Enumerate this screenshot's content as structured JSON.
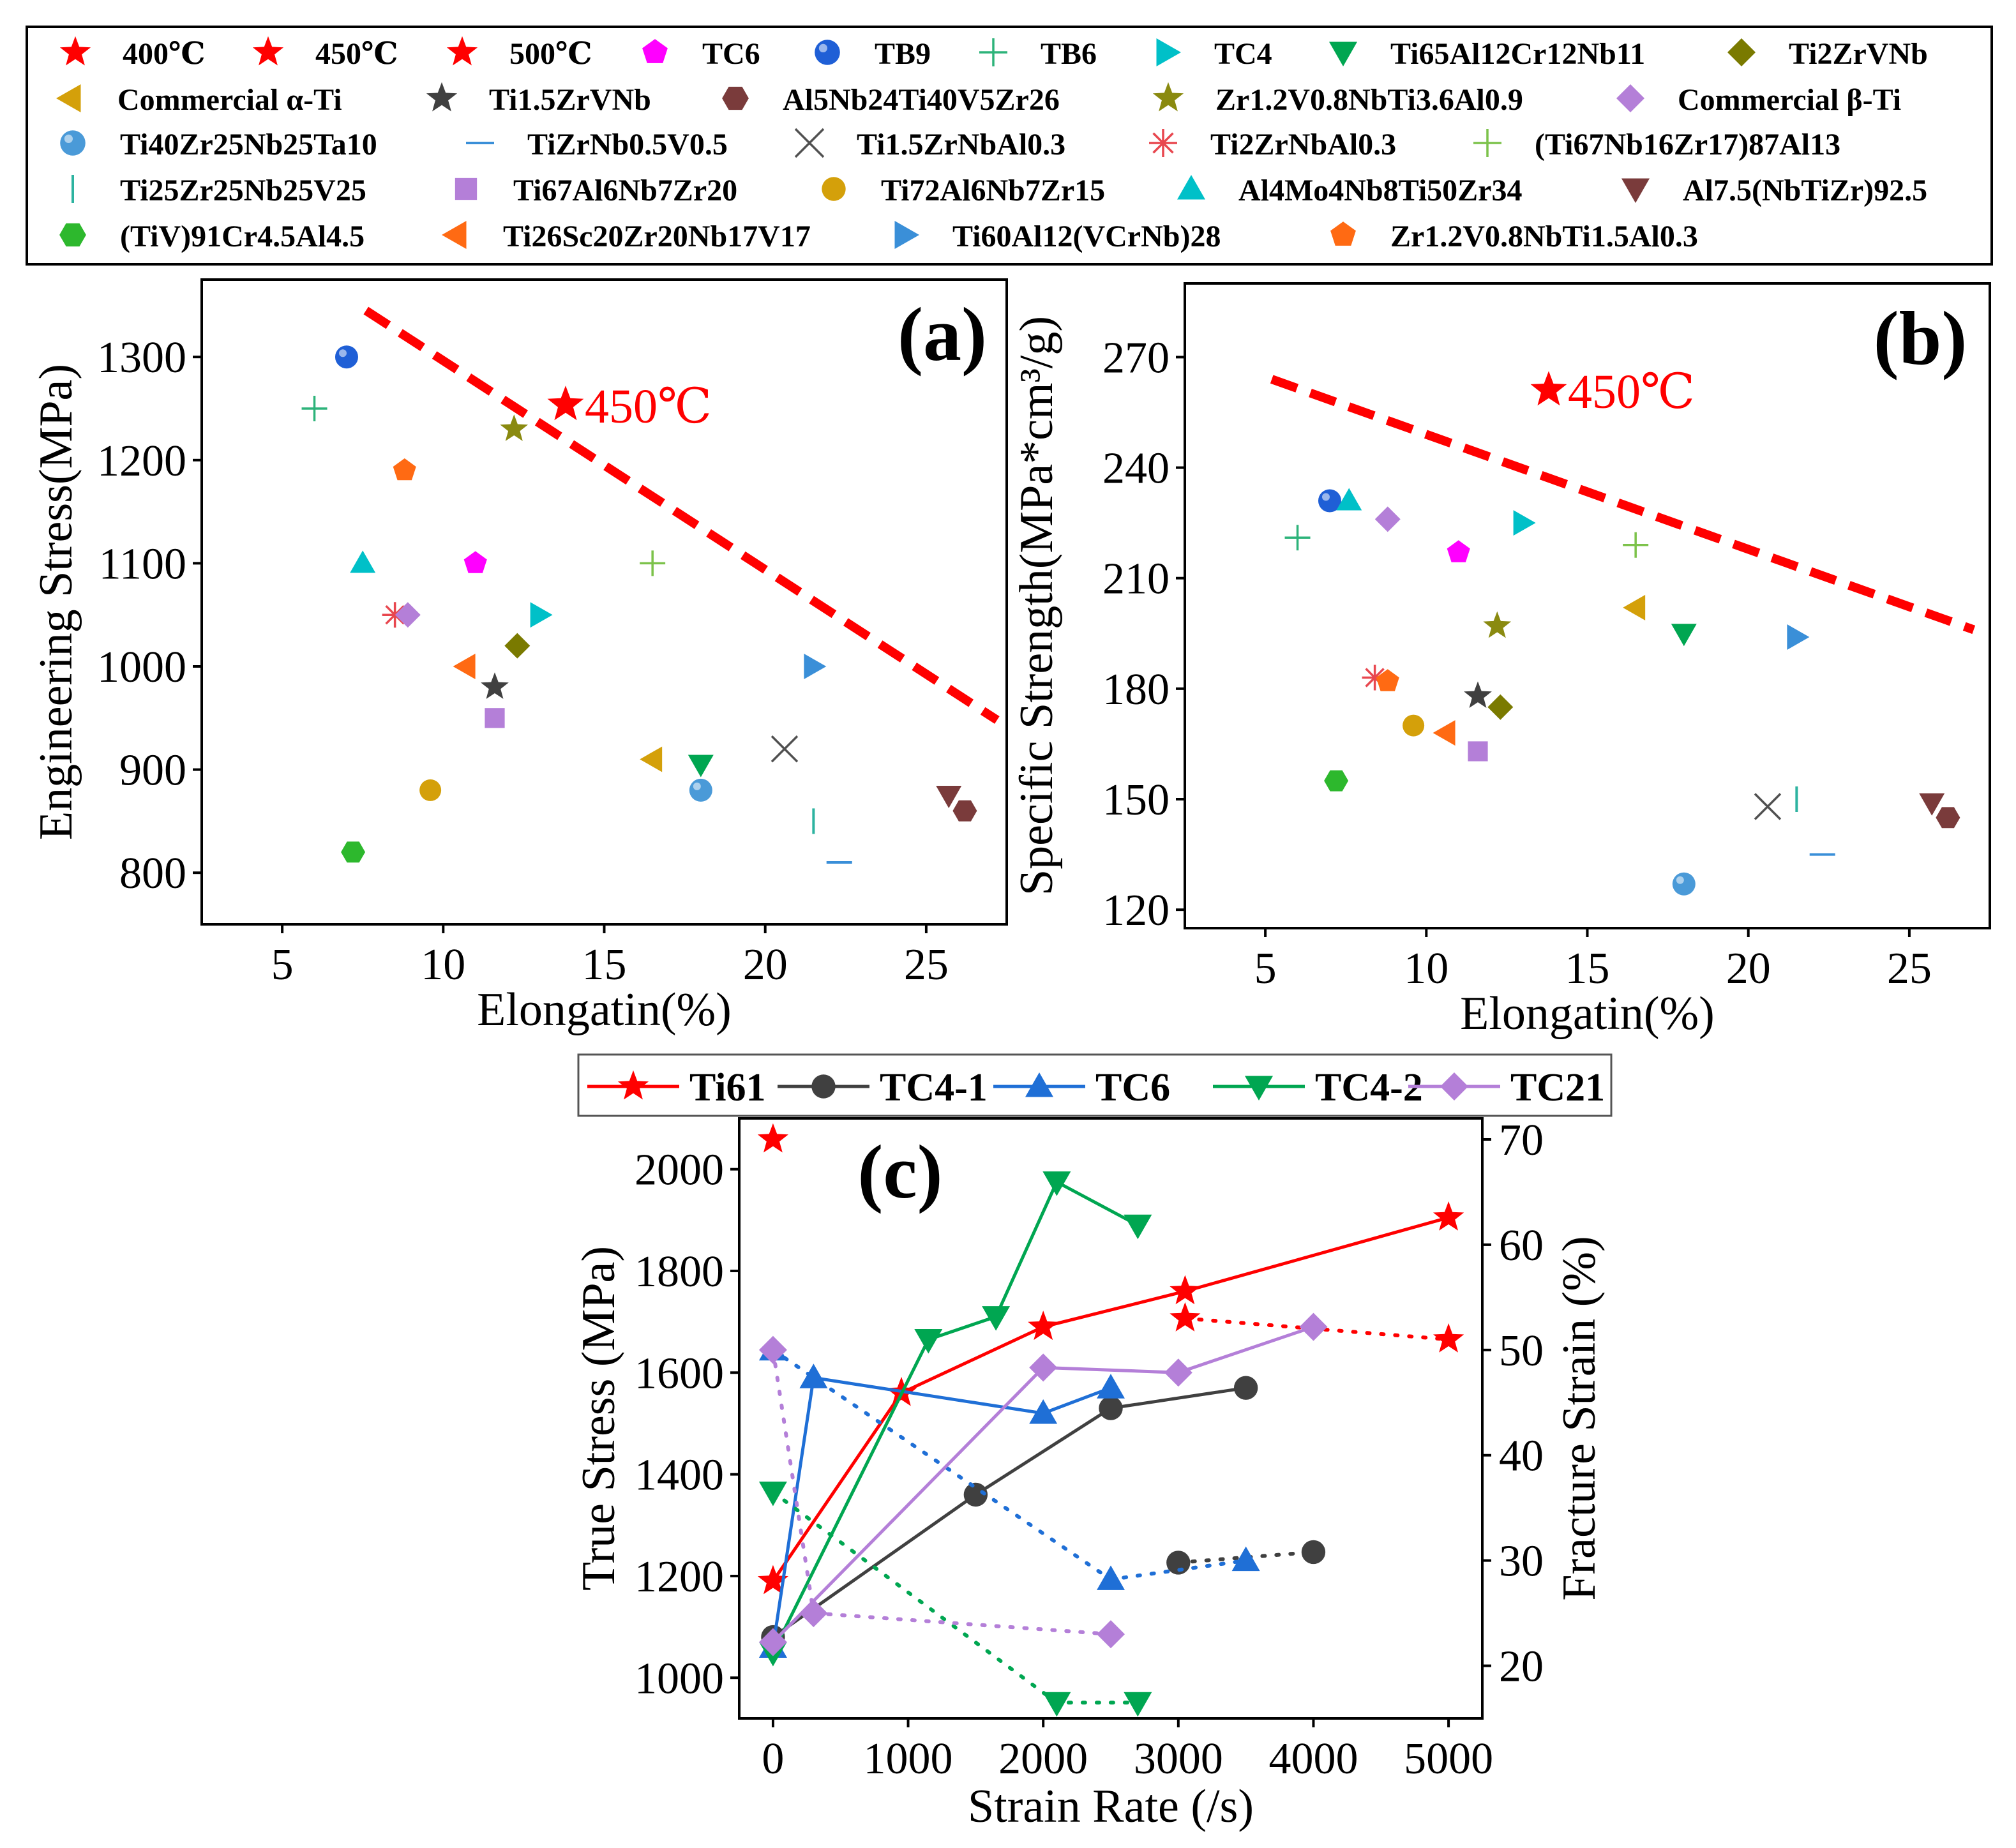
{
  "figure": {
    "legend_top": [
      {
        "label": "400℃",
        "marker": "star",
        "color": "#ff0000"
      },
      {
        "label": "450℃",
        "marker": "star",
        "color": "#ff0000"
      },
      {
        "label": "500℃",
        "marker": "star",
        "color": "#ff0000"
      },
      {
        "label": "TC6",
        "marker": "pentagon",
        "color": "#ff00ff"
      },
      {
        "label": "TB9",
        "marker": "sphere",
        "color": "#1f5fd6"
      },
      {
        "label": "TB6",
        "marker": "plus",
        "color": "#2db37a"
      },
      {
        "label": "TC4",
        "marker": "triangle-right",
        "color": "#00c0c8"
      },
      {
        "label": "Ti65Al12Cr12Nb11",
        "marker": "triangle-down",
        "color": "#00a651"
      },
      {
        "label": "Ti2ZrVNb",
        "marker": "diamond",
        "color": "#7a7a00"
      },
      {
        "label": "Commercial α-Ti",
        "marker": "triangle-left",
        "color": "#d4a00a"
      },
      {
        "label": "Ti1.5ZrVNb",
        "marker": "star",
        "color": "#404040"
      },
      {
        "label": "Al5Nb24Ti40V5Zr26",
        "marker": "hexagon",
        "color": "#7a3b3b"
      },
      {
        "label": "Zr1.2V0.8NbTi3.6Al0.9",
        "marker": "star",
        "color": "#8a8a10"
      },
      {
        "label": "Commercial β-Ti",
        "marker": "diamond",
        "color": "#b47fd8"
      },
      {
        "label": "Ti40Zr25Nb25Ta10",
        "marker": "sphere",
        "color": "#4a9ad8"
      },
      {
        "label": "TiZrNb0.5V0.5",
        "marker": "minus",
        "color": "#3a8fd8"
      },
      {
        "label": "Ti1.5ZrNbAl0.3",
        "marker": "cross",
        "color": "#505050"
      },
      {
        "label": "Ti2ZrNbAl0.3",
        "marker": "asterisk",
        "color": "#e8474f"
      },
      {
        "label": "(Ti67Nb16Zr17)87Al13",
        "marker": "plus",
        "color": "#7cc24a"
      },
      {
        "label": "Ti25Zr25Nb25V25",
        "marker": "vbar",
        "color": "#2db3a0"
      },
      {
        "label": "Ti67Al6Nb7Zr20",
        "marker": "square",
        "color": "#b47fd8"
      },
      {
        "label": "Ti72Al6Nb7Zr15",
        "marker": "circle",
        "color": "#d4a00a"
      },
      {
        "label": "Al4Mo4Nb8Ti50Zr34",
        "marker": "triangle-up",
        "color": "#00c0c8"
      },
      {
        "label": "Al7.5(NbTiZr)92.5",
        "marker": "triangle-down",
        "color": "#7a3b3b"
      },
      {
        "label": "(TiV)91Cr4.5Al4.5",
        "marker": "hexagon",
        "color": "#2db82d"
      },
      {
        "label": "Ti26Sc20Zr20Nb17V17",
        "marker": "triangle-left",
        "color": "#ff6a13"
      },
      {
        "label": "Ti60Al12(VCrNb)28",
        "marker": "triangle-right",
        "color": "#3a8fd8"
      },
      {
        "label": "Zr1.2V0.8NbTi1.5Al0.3",
        "marker": "pentagon",
        "color": "#ff6a13"
      }
    ]
  },
  "chart_data": [
    {
      "type": "scatter",
      "panel_label": "(a)",
      "xlabel": "Elongatin(%)",
      "ylabel": "Engineering Stress(MPa)",
      "xlim": [
        2.5,
        27.5
      ],
      "ylim": [
        750,
        1375
      ],
      "xticks": [
        5,
        10,
        15,
        20,
        25
      ],
      "yticks": [
        800,
        900,
        1000,
        1100,
        1200,
        1300
      ],
      "trend_line": [
        [
          7.6,
          1345
        ],
        [
          27.2,
          948
        ]
      ],
      "annotation": {
        "text": "450℃",
        "x": 13.8,
        "y": 1250
      },
      "points": [
        {
          "label": "TB9",
          "x": 7.0,
          "y": 1300
        },
        {
          "label": "TB6",
          "x": 6.0,
          "y": 1250
        },
        {
          "label": "Zr1.2V0.8NbTi3.6Al0.9",
          "x": 12.2,
          "y": 1230
        },
        {
          "label": "Zr1.2V0.8NbTi1.5Al0.3",
          "x": 8.8,
          "y": 1190
        },
        {
          "label": "Al4Mo4Nb8Ti50Zr34",
          "x": 7.5,
          "y": 1100
        },
        {
          "label": "TC6",
          "x": 11.0,
          "y": 1100
        },
        {
          "label": "(Ti67Nb16Zr17)87Al13",
          "x": 16.5,
          "y": 1100
        },
        {
          "label": "Ti2ZrNbAl0.3",
          "x": 8.5,
          "y": 1050
        },
        {
          "label": "Commercial β-Ti",
          "x": 8.9,
          "y": 1050
        },
        {
          "label": "TC4",
          "x": 13.0,
          "y": 1050
        },
        {
          "label": "Ti2ZrVNb",
          "x": 12.3,
          "y": 1020
        },
        {
          "label": "Ti26Sc20Zr20Nb17V17",
          "x": 10.7,
          "y": 1000
        },
        {
          "label": "Ti60Al12(VCrNb)28",
          "x": 21.5,
          "y": 1000
        },
        {
          "label": "Ti1.5ZrVNb",
          "x": 11.6,
          "y": 980
        },
        {
          "label": "Ti67Al6Nb7Zr20",
          "x": 11.6,
          "y": 950
        },
        {
          "label": "Ti1.5ZrNbAl0.3",
          "x": 20.6,
          "y": 920
        },
        {
          "label": "Commercial α-Ti",
          "x": 16.5,
          "y": 910
        },
        {
          "label": "Ti65Al12Cr12Nb11",
          "x": 18.0,
          "y": 905
        },
        {
          "label": "Ti72Al6Nb7Zr15",
          "x": 9.6,
          "y": 880
        },
        {
          "label": "Ti40Zr25Nb25Ta10",
          "x": 18.0,
          "y": 880
        },
        {
          "label": "Al7.5(NbTiZr)92.5",
          "x": 25.7,
          "y": 875
        },
        {
          "label": "Al5Nb24Ti40V5Zr26",
          "x": 26.2,
          "y": 860
        },
        {
          "label": "Ti25Zr25Nb25V25",
          "x": 21.5,
          "y": 850
        },
        {
          "label": "TiZrNb0.5V0.5",
          "x": 22.3,
          "y": 810
        },
        {
          "label": "(TiV)91Cr4.5Al4.5",
          "x": 7.2,
          "y": 820
        }
      ]
    },
    {
      "type": "scatter",
      "panel_label": "(b)",
      "xlabel": "Elongatin(%)",
      "ylabel": "Specific Strength(MPa*cm³/g)",
      "xlim": [
        2.5,
        27.5
      ],
      "ylim": [
        115,
        290
      ],
      "xticks": [
        5,
        10,
        15,
        20,
        25
      ],
      "yticks": [
        120,
        150,
        180,
        210,
        240,
        270
      ],
      "trend_line": [
        [
          5.2,
          264
        ],
        [
          27.0,
          196
        ]
      ],
      "annotation": {
        "text": "450℃",
        "x": 13.8,
        "y": 260
      },
      "points": [
        {
          "label": "TB9",
          "x": 7.0,
          "y": 231
        },
        {
          "label": "Al4Mo4Nb8Ti50Zr34",
          "x": 7.6,
          "y": 231
        },
        {
          "label": "Commercial β-Ti",
          "x": 8.8,
          "y": 226
        },
        {
          "label": "TC4",
          "x": 13.0,
          "y": 225
        },
        {
          "label": "TB6",
          "x": 6.0,
          "y": 221
        },
        {
          "label": "(Ti67Nb16Zr17)87Al13",
          "x": 16.5,
          "y": 219
        },
        {
          "label": "TC6",
          "x": 11.0,
          "y": 217
        },
        {
          "label": "Commercial α-Ti",
          "x": 16.5,
          "y": 202
        },
        {
          "label": "Zr1.2V0.8NbTi3.6Al0.9",
          "x": 12.2,
          "y": 197
        },
        {
          "label": "Ti65Al12Cr12Nb11",
          "x": 18.0,
          "y": 195
        },
        {
          "label": "Ti60Al12(VCrNb)28",
          "x": 21.5,
          "y": 194
        },
        {
          "label": "Ti2ZrNbAl0.3",
          "x": 8.4,
          "y": 183
        },
        {
          "label": "Zr1.2V0.8NbTi1.5Al0.3",
          "x": 8.8,
          "y": 182
        },
        {
          "label": "Ti1.5ZrVNb",
          "x": 11.6,
          "y": 178
        },
        {
          "label": "Ti2ZrVNb",
          "x": 12.3,
          "y": 175
        },
        {
          "label": "Ti72Al6Nb7Zr15",
          "x": 9.6,
          "y": 170
        },
        {
          "label": "Ti26Sc20Zr20Nb17V17",
          "x": 10.6,
          "y": 168
        },
        {
          "label": "Ti67Al6Nb7Zr20",
          "x": 11.6,
          "y": 163
        },
        {
          "label": "(TiV)91Cr4.5Al4.5",
          "x": 7.2,
          "y": 155
        },
        {
          "label": "Ti25Zr25Nb25V25",
          "x": 21.5,
          "y": 150
        },
        {
          "label": "Al7.5(NbTiZr)92.5",
          "x": 25.7,
          "y": 149
        },
        {
          "label": "Ti1.5ZrNbAl0.3",
          "x": 20.6,
          "y": 148
        },
        {
          "label": "Al5Nb24Ti40V5Zr26",
          "x": 26.2,
          "y": 145
        },
        {
          "label": "TiZrNb0.5V0.5",
          "x": 22.3,
          "y": 135
        },
        {
          "label": "Ti40Zr25Nb25Ta10",
          "x": 18.0,
          "y": 127
        }
      ]
    },
    {
      "type": "line",
      "panel_label": "(c)",
      "xlabel": "Strain Rate (/s)",
      "ylabel": "True Stress (MPa)",
      "y2label": "Fracture Strain (%)",
      "xlim": [
        -250,
        5250
      ],
      "ylim": [
        920,
        2100
      ],
      "y2lim": [
        15,
        72
      ],
      "xticks": [
        0,
        1000,
        2000,
        3000,
        4000,
        5000
      ],
      "yticks": [
        1000,
        1200,
        1400,
        1600,
        1800,
        2000
      ],
      "y2ticks": [
        20,
        30,
        40,
        50,
        60,
        70
      ],
      "legend": [
        "Ti61",
        "TC4-1",
        "TC6",
        "TC4-2",
        "TC21"
      ],
      "series": [
        {
          "name": "Ti61",
          "color": "#ff0000",
          "marker": "star",
          "stress": [
            [
              0,
              1190
            ],
            [
              950,
              1560
            ],
            [
              2000,
              1690
            ],
            [
              3050,
              1760
            ],
            [
              5000,
              1905
            ]
          ],
          "strain": [
            [
              0,
              70
            ],
            [
              3050,
              53
            ],
            [
              5000,
              51
            ]
          ]
        },
        {
          "name": "TC4-1",
          "color": "#404040",
          "marker": "circle",
          "stress": [
            [
              0,
              1080
            ],
            [
              1500,
              1360
            ],
            [
              2500,
              1530
            ],
            [
              3500,
              1570
            ]
          ],
          "strain": [
            [
              3000,
              29.8
            ],
            [
              4000,
              30.8
            ]
          ]
        },
        {
          "name": "TC6",
          "color": "#1f6fd6",
          "marker": "triangle-up",
          "stress": [
            [
              0,
              1060
            ],
            [
              300,
              1590
            ],
            [
              2000,
              1520
            ],
            [
              2500,
              1570
            ]
          ],
          "strain": [
            [
              0,
              50
            ],
            [
              2500,
              28.2
            ],
            [
              3500,
              30
            ]
          ]
        },
        {
          "name": "TC4-2",
          "color": "#00a651",
          "marker": "triangle-down",
          "stress": [
            [
              0,
              1050
            ],
            [
              1150,
              1665
            ],
            [
              1650,
              1710
            ],
            [
              2100,
              1975
            ],
            [
              2700,
              1890
            ]
          ],
          "strain": [
            [
              0,
              36.5
            ],
            [
              2100,
              16.5
            ],
            [
              2700,
              16.5
            ]
          ]
        },
        {
          "name": "TC21",
          "color": "#b47fd8",
          "marker": "diamond",
          "stress": [
            [
              0,
              1070
            ],
            [
              2000,
              1610
            ],
            [
              3000,
              1600
            ],
            [
              4000,
              1690
            ]
          ],
          "strain": [
            [
              0,
              50
            ],
            [
              300,
              25
            ],
            [
              2500,
              23
            ]
          ]
        }
      ]
    }
  ]
}
